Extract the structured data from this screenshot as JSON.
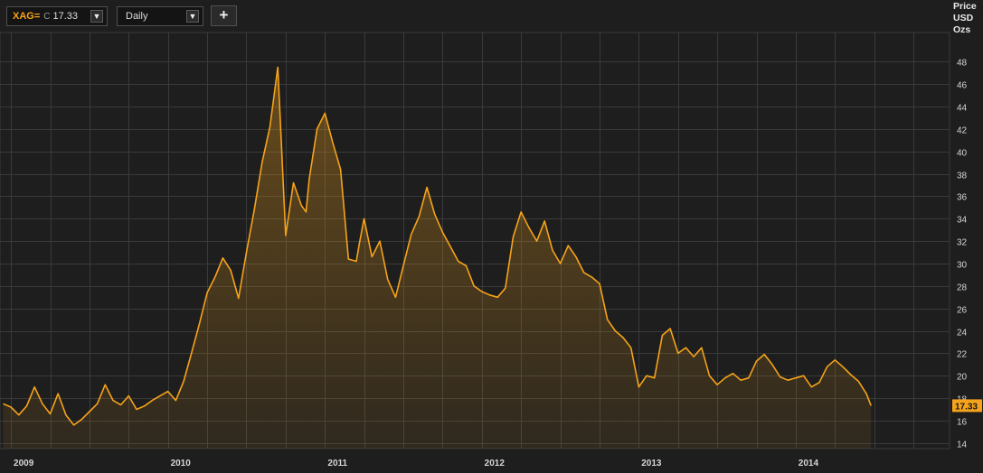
{
  "toolbar": {
    "symbol": "XAG=",
    "close_tag": "C",
    "last_value": "17.33",
    "interval": "Daily",
    "add_label": "+",
    "dropdown_glyph": "▼"
  },
  "axis_unit": [
    "Price",
    "USD",
    "Ozs"
  ],
  "colors": {
    "background": "#1e1e1e",
    "grid": "#3a3a3a",
    "line": "#f5a31a",
    "fill": "#f5a31a"
  },
  "chart_data": {
    "type": "area",
    "title": "",
    "xlabel": "",
    "ylabel": "Price USD Ozs",
    "y_axis_side": "right",
    "grid": true,
    "ylim": [
      13.5,
      50.6
    ],
    "xlim": [
      2008.93,
      2014.98
    ],
    "y_ticks": [
      14,
      16,
      18,
      20,
      22,
      24,
      26,
      28,
      30,
      32,
      34,
      36,
      38,
      40,
      42,
      44,
      46,
      48
    ],
    "x_ticks": [
      {
        "label": "2009",
        "x": 2009.0
      },
      {
        "label": "2010",
        "x": 2010.0
      },
      {
        "label": "2011",
        "x": 2011.0
      },
      {
        "label": "2012",
        "x": 2012.0
      },
      {
        "label": "2013",
        "x": 2013.0
      },
      {
        "label": "2014",
        "x": 2014.0
      }
    ],
    "last_value_label": "17.33",
    "series": [
      {
        "x": [
          2008.95,
          2009.0,
          2009.05,
          2009.1,
          2009.15,
          2009.2,
          2009.25,
          2009.3,
          2009.35,
          2009.4,
          2009.45,
          2009.5,
          2009.55,
          2009.6,
          2009.65,
          2009.7,
          2009.75,
          2009.8,
          2009.85,
          2009.9,
          2009.95,
          2010.0,
          2010.05,
          2010.1,
          2010.15,
          2010.2,
          2010.25,
          2010.3,
          2010.35,
          2010.4,
          2010.45,
          2010.5,
          2010.55,
          2010.6,
          2010.65,
          2010.7,
          2010.75,
          2010.8,
          2010.85,
          2010.88,
          2010.9,
          2010.95,
          2011.0,
          2011.05,
          2011.1,
          2011.15,
          2011.2,
          2011.22,
          2011.25,
          2011.3,
          2011.35,
          2011.4,
          2011.45,
          2011.5,
          2011.55,
          2011.6,
          2011.65,
          2011.7,
          2011.75,
          2011.8,
          2011.85,
          2011.9,
          2011.95,
          2012.0,
          2012.05,
          2012.1,
          2012.15,
          2012.2,
          2012.25,
          2012.3,
          2012.35,
          2012.4,
          2012.45,
          2012.5,
          2012.55,
          2012.6,
          2012.65,
          2012.7,
          2012.75,
          2012.8,
          2012.85,
          2012.9,
          2012.95,
          2013.0,
          2013.05,
          2013.1,
          2013.15,
          2013.2,
          2013.25,
          2013.3,
          2013.35,
          2013.4,
          2013.45,
          2013.5,
          2013.55,
          2013.6,
          2013.65,
          2013.7,
          2013.75,
          2013.8,
          2013.85,
          2013.9,
          2013.95,
          2014.0,
          2014.05,
          2014.1,
          2014.15,
          2014.2,
          2014.25,
          2014.3,
          2014.35,
          2014.4,
          2014.45,
          2014.48
        ],
        "y": [
          17.5,
          17.2,
          16.5,
          17.3,
          19.0,
          17.5,
          16.6,
          18.4,
          16.5,
          15.6,
          16.1,
          16.8,
          17.5,
          19.2,
          17.8,
          17.4,
          18.2,
          17.0,
          17.3,
          17.8,
          18.2,
          18.6,
          17.8,
          19.5,
          22.0,
          24.6,
          27.4,
          28.8,
          30.5,
          29.4,
          26.9,
          31.0,
          34.8,
          39.0,
          42.2,
          47.5,
          32.5,
          37.2,
          35.2,
          34.6,
          37.5,
          42.0,
          43.4,
          40.8,
          38.4,
          30.4,
          30.2,
          31.8,
          34.0,
          30.6,
          32.0,
          28.6,
          27.0,
          29.8,
          32.6,
          34.2,
          36.8,
          34.4,
          32.8,
          31.5,
          30.2,
          29.8,
          28.0,
          27.5,
          27.2,
          27.0,
          27.8,
          32.4,
          34.6,
          33.2,
          32.0,
          33.8,
          31.2,
          30.0,
          31.6,
          30.6,
          29.2,
          28.8,
          28.2,
          25.0,
          24.0,
          23.4,
          22.5,
          19.0,
          20.0,
          19.8,
          23.6,
          24.2,
          22.0,
          22.5,
          21.7,
          22.5,
          20.0,
          19.2,
          19.8,
          20.2,
          19.6,
          19.8,
          21.3,
          21.9,
          21.0,
          19.9,
          19.6,
          19.8,
          20.0,
          19.0,
          19.4,
          20.8,
          21.4,
          20.8,
          20.1,
          19.5,
          18.4,
          17.33
        ]
      }
    ]
  }
}
